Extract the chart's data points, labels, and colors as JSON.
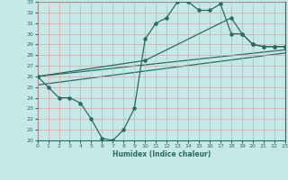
{
  "xlabel": "Humidex (Indice chaleur)",
  "ylabel": "",
  "xlim": [
    0,
    23
  ],
  "ylim": [
    20,
    33
  ],
  "xticks": [
    0,
    1,
    2,
    3,
    4,
    5,
    6,
    7,
    8,
    9,
    10,
    11,
    12,
    13,
    14,
    15,
    16,
    17,
    18,
    19,
    20,
    21,
    22,
    23
  ],
  "yticks": [
    20,
    21,
    22,
    23,
    24,
    25,
    26,
    27,
    28,
    29,
    30,
    31,
    32,
    33
  ],
  "bg_color": "#c6e8e6",
  "grid_color": "#e8a0a0",
  "line_color": "#2a6b60",
  "line1_x": [
    0,
    1,
    2,
    3,
    4,
    5,
    6,
    7,
    8,
    9,
    10,
    11,
    12,
    13,
    14,
    15,
    16,
    17,
    18,
    19,
    20,
    21,
    22,
    23
  ],
  "line1_y": [
    26,
    25,
    24,
    24,
    23.5,
    22,
    20.2,
    20,
    21,
    23,
    29.5,
    31,
    31.5,
    33,
    33,
    32.2,
    32.2,
    32.8,
    30,
    30,
    29,
    28.8,
    28.8,
    28.8
  ],
  "line2_x": [
    0,
    10,
    18,
    19,
    20,
    21,
    22,
    23
  ],
  "line2_y": [
    26,
    27.5,
    31.5,
    30,
    29,
    28.8,
    28.8,
    28.8
  ],
  "line3_x": [
    0,
    23
  ],
  "line3_y": [
    25.2,
    28.2
  ],
  "line4_x": [
    0,
    23
  ],
  "line4_y": [
    26.0,
    28.5
  ]
}
